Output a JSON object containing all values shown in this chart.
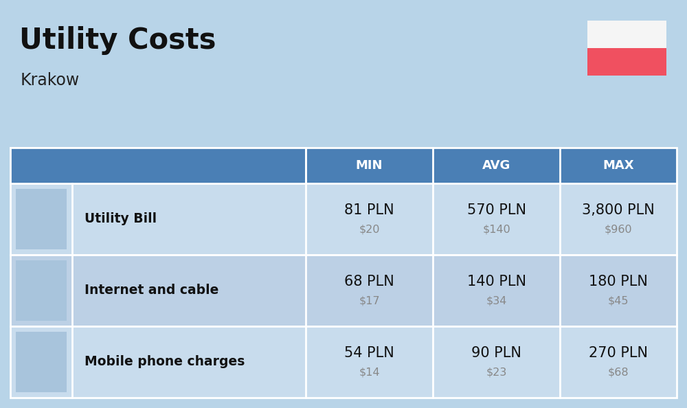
{
  "title": "Utility Costs",
  "subtitle": "Krakow",
  "background_color": "#b8d4e8",
  "header_bg_color": "#4a7fb5",
  "header_text_color": "#ffffff",
  "row_bg_color_1": "#c8dced",
  "row_bg_color_2": "#bcd0e5",
  "cell_border_color": "#ffffff",
  "headers": [
    "MIN",
    "AVG",
    "MAX"
  ],
  "rows": [
    {
      "label": "Utility Bill",
      "min_pln": "81 PLN",
      "min_usd": "$20",
      "avg_pln": "570 PLN",
      "avg_usd": "$140",
      "max_pln": "3,800 PLN",
      "max_usd": "$960"
    },
    {
      "label": "Internet and cable",
      "min_pln": "68 PLN",
      "min_usd": "$17",
      "avg_pln": "140 PLN",
      "avg_usd": "$34",
      "max_pln": "180 PLN",
      "max_usd": "$45"
    },
    {
      "label": "Mobile phone charges",
      "min_pln": "54 PLN",
      "min_usd": "$14",
      "avg_pln": "90 PLN",
      "avg_usd": "$23",
      "max_pln": "270 PLN",
      "max_usd": "$68"
    }
  ],
  "flag_white": "#f5f5f5",
  "flag_red": "#f05060",
  "title_fontsize": 30,
  "subtitle_fontsize": 17,
  "label_fontsize": 13.5,
  "value_fontsize": 15,
  "usd_fontsize": 11.5,
  "header_fontsize": 13
}
